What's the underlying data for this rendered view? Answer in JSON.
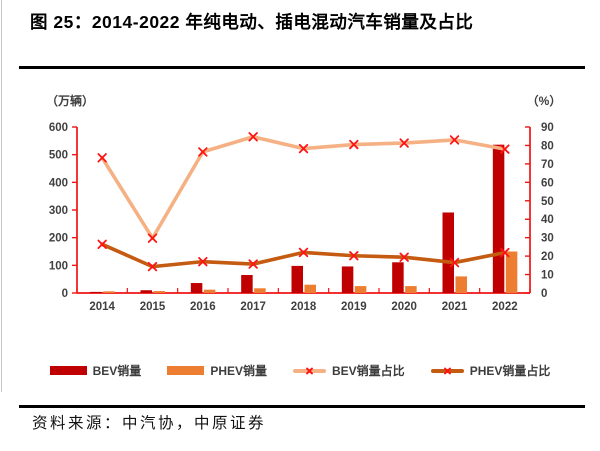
{
  "figure": {
    "title": "图 25：2014-2022 年纯电动、插电混动汽车销量及占比",
    "source": "资料来源：中汽协，中原证券"
  },
  "chart_data": {
    "type": "combo-bar-line",
    "title": "图 25：2014-2022 年纯电动、插电混动汽车销量及占比",
    "categories": [
      "2014",
      "2015",
      "2016",
      "2017",
      "2018",
      "2019",
      "2020",
      "2021",
      "2022"
    ],
    "left_axis": {
      "label": "（万辆）",
      "min": 0,
      "max": 600,
      "step": 100
    },
    "right_axis": {
      "label": "（%）",
      "min": 0,
      "max": 90,
      "step": 10
    },
    "series": [
      {
        "name": "BEV销量",
        "type": "bar",
        "axis": "left",
        "color": "#C00000",
        "values": [
          4,
          10,
          36,
          65,
          98,
          96,
          111,
          291,
          536
        ]
      },
      {
        "name": "PHEV销量",
        "type": "bar",
        "axis": "left",
        "color": "#ED7D31",
        "values": [
          6,
          7,
          12,
          17,
          30,
          25,
          25,
          60,
          150
        ]
      },
      {
        "name": "BEV销量占比",
        "type": "line",
        "axis": "right",
        "color": "#F5B183",
        "marker": "x",
        "marker_color": "#FF1414",
        "values": [
          73.3,
          29.7,
          76.5,
          84.7,
          78.3,
          80.5,
          81.3,
          83.0,
          78.0
        ]
      },
      {
        "name": "PHEV销量占比",
        "type": "line",
        "axis": "right",
        "color": "#C55A11",
        "marker": "x",
        "marker_color": "#FF1414",
        "values": [
          26.4,
          14.3,
          17.0,
          15.7,
          22.0,
          20.2,
          19.4,
          16.5,
          21.9
        ]
      }
    ],
    "legend_position": "bottom",
    "grid": false,
    "axis_color": "#F01414",
    "tick_text_color": "#404040"
  }
}
